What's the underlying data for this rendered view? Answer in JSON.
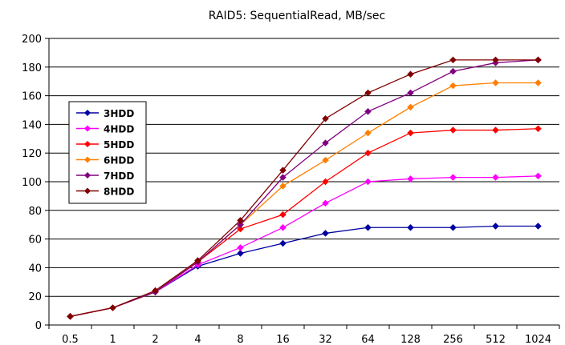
{
  "chart_data": {
    "type": "line",
    "title": "RAID5: SequentialRead, MB/sec",
    "xlabel": "",
    "ylabel": "",
    "categories": [
      "0.5",
      "1",
      "2",
      "4",
      "8",
      "16",
      "32",
      "64",
      "128",
      "256",
      "512",
      "1024"
    ],
    "ylim": [
      0,
      200
    ],
    "yticks": [
      0,
      20,
      40,
      60,
      80,
      100,
      120,
      140,
      160,
      180,
      200
    ],
    "grid": true,
    "legend_position": "left",
    "series": [
      {
        "name": "3HDD",
        "color": "#0000a0",
        "values": [
          6,
          12,
          23,
          41,
          50,
          57,
          64,
          68,
          68,
          68,
          69,
          69
        ]
      },
      {
        "name": "4HDD",
        "color": "#ff00ff",
        "values": [
          6,
          12,
          23,
          42,
          54,
          68,
          85,
          100,
          102,
          103,
          103,
          104
        ]
      },
      {
        "name": "5HDD",
        "color": "#ff0000",
        "values": [
          6,
          12,
          23,
          44,
          67,
          77,
          100,
          120,
          134,
          136,
          136,
          137
        ]
      },
      {
        "name": "6HDD",
        "color": "#ff8000",
        "values": [
          6,
          12,
          23,
          44,
          70,
          97,
          115,
          134,
          152,
          167,
          169,
          169
        ]
      },
      {
        "name": "7HDD",
        "color": "#800080",
        "values": [
          6,
          12,
          23,
          44,
          70,
          103,
          127,
          149,
          162,
          177,
          183,
          185
        ]
      },
      {
        "name": "8HDD",
        "color": "#800000",
        "values": [
          6,
          12,
          24,
          45,
          73,
          108,
          144,
          162,
          175,
          185,
          185,
          185
        ]
      }
    ]
  }
}
